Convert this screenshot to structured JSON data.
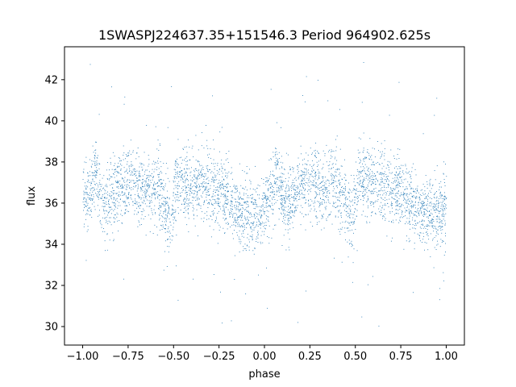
{
  "chart_data": {
    "type": "scatter",
    "title": "1SWASPJ224637.35+151546.3 Period 964902.625s",
    "xlabel": "phase",
    "ylabel": "flux",
    "xlim": [
      -1.1,
      1.1
    ],
    "ylim": [
      29.1,
      43.6
    ],
    "xticks": [
      -1.0,
      -0.75,
      -0.5,
      -0.25,
      0.0,
      0.25,
      0.5,
      0.75,
      1.0
    ],
    "xtick_labels": [
      "−1.00",
      "−0.75",
      "−0.50",
      "−0.25",
      "0.00",
      "0.25",
      "0.50",
      "0.75",
      "1.00"
    ],
    "yticks": [
      30,
      32,
      34,
      36,
      38,
      40,
      42
    ],
    "ytick_labels": [
      "30",
      "32",
      "34",
      "36",
      "38",
      "40",
      "42"
    ],
    "grid": false,
    "marker_color": "#1f77b4",
    "profile": {
      "phase": [
        -1.0,
        -0.97,
        -0.93,
        -0.9,
        -0.87,
        -0.84,
        -0.8,
        -0.76,
        -0.72,
        -0.68,
        -0.65,
        -0.62,
        -0.58,
        -0.55,
        -0.52,
        -0.48,
        -0.44,
        -0.4,
        -0.36,
        -0.32,
        -0.28,
        -0.24,
        -0.2,
        -0.16,
        -0.12,
        -0.08,
        -0.05,
        -0.02,
        0.0,
        0.03,
        0.07,
        0.1,
        0.13,
        0.16,
        0.2,
        0.24,
        0.28,
        0.32,
        0.35,
        0.38,
        0.42,
        0.45,
        0.48,
        0.52,
        0.56,
        0.6,
        0.64,
        0.68,
        0.72,
        0.76,
        0.8,
        0.84,
        0.88,
        0.92,
        0.95,
        0.98,
        1.0
      ],
      "mean_flux": [
        36.0,
        36.3,
        37.6,
        36.2,
        36.0,
        36.4,
        37.0,
        36.8,
        37.2,
        36.4,
        36.8,
        37.0,
        36.6,
        35.8,
        35.2,
        37.2,
        37.0,
        36.8,
        37.0,
        36.8,
        36.6,
        36.5,
        36.0,
        35.8,
        35.4,
        35.6,
        35.5,
        35.7,
        36.0,
        36.3,
        37.6,
        36.2,
        36.0,
        36.4,
        37.0,
        36.8,
        37.2,
        36.4,
        36.8,
        37.0,
        36.6,
        35.8,
        35.2,
        37.2,
        37.0,
        36.8,
        37.0,
        36.8,
        36.6,
        36.5,
        36.0,
        35.8,
        35.4,
        35.6,
        35.5,
        35.7,
        36.0
      ],
      "scatter_sigma": 0.85
    }
  }
}
